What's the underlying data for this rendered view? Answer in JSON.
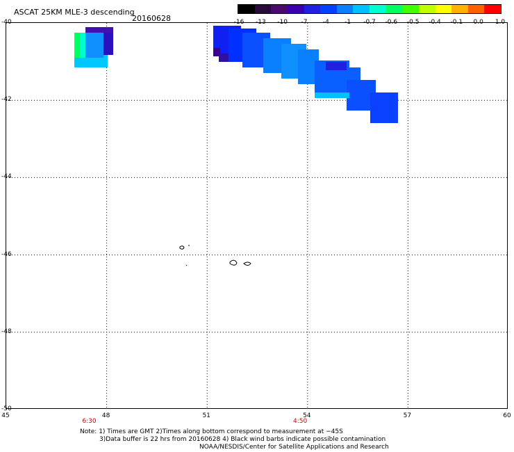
{
  "header": {
    "title": "ASCAT 25KM MLE-3 descending",
    "date": "20160628"
  },
  "colorbar": {
    "ticks": [
      "-16",
      "-13",
      "-10",
      "-7",
      "-4",
      "-1",
      "-0.7",
      "-0.6",
      "-0.5",
      "-0.4",
      "-0.1",
      "0.0",
      "1.0"
    ],
    "colors": [
      "#000000",
      "#2a0a3a",
      "#4a0a6a",
      "#3a00b0",
      "#2020e0",
      "#0040ff",
      "#0a80ff",
      "#00c0ff",
      "#00ffd0",
      "#00ff60",
      "#40ff00",
      "#c0ff00",
      "#ffff00",
      "#ffb000",
      "#ff6000",
      "#ff0000"
    ]
  },
  "map": {
    "y_labels": [
      "-40",
      "-42",
      "-44",
      "-46",
      "-48",
      "-50"
    ],
    "x_labels": [
      "45",
      "48",
      "51",
      "54",
      "57",
      "60"
    ],
    "time_labels": [
      {
        "text": "6:30",
        "lon": 47.5
      },
      {
        "text": "4:50",
        "lon": 53.8
      }
    ],
    "lat_range": [
      -50,
      -40
    ],
    "lon_range": [
      45,
      60
    ],
    "grid": "dotted"
  },
  "notes": {
    "line1": "Note: 1) Times are GMT 2)Times along bottom correspond to measurement at −45S",
    "line2": "3)Data buffer is 22 hrs from 20160628 4) Black wind barbs indicate possible contamination",
    "line3": "NOAA/NESDIS/Center for Satellite Applications and Research"
  }
}
